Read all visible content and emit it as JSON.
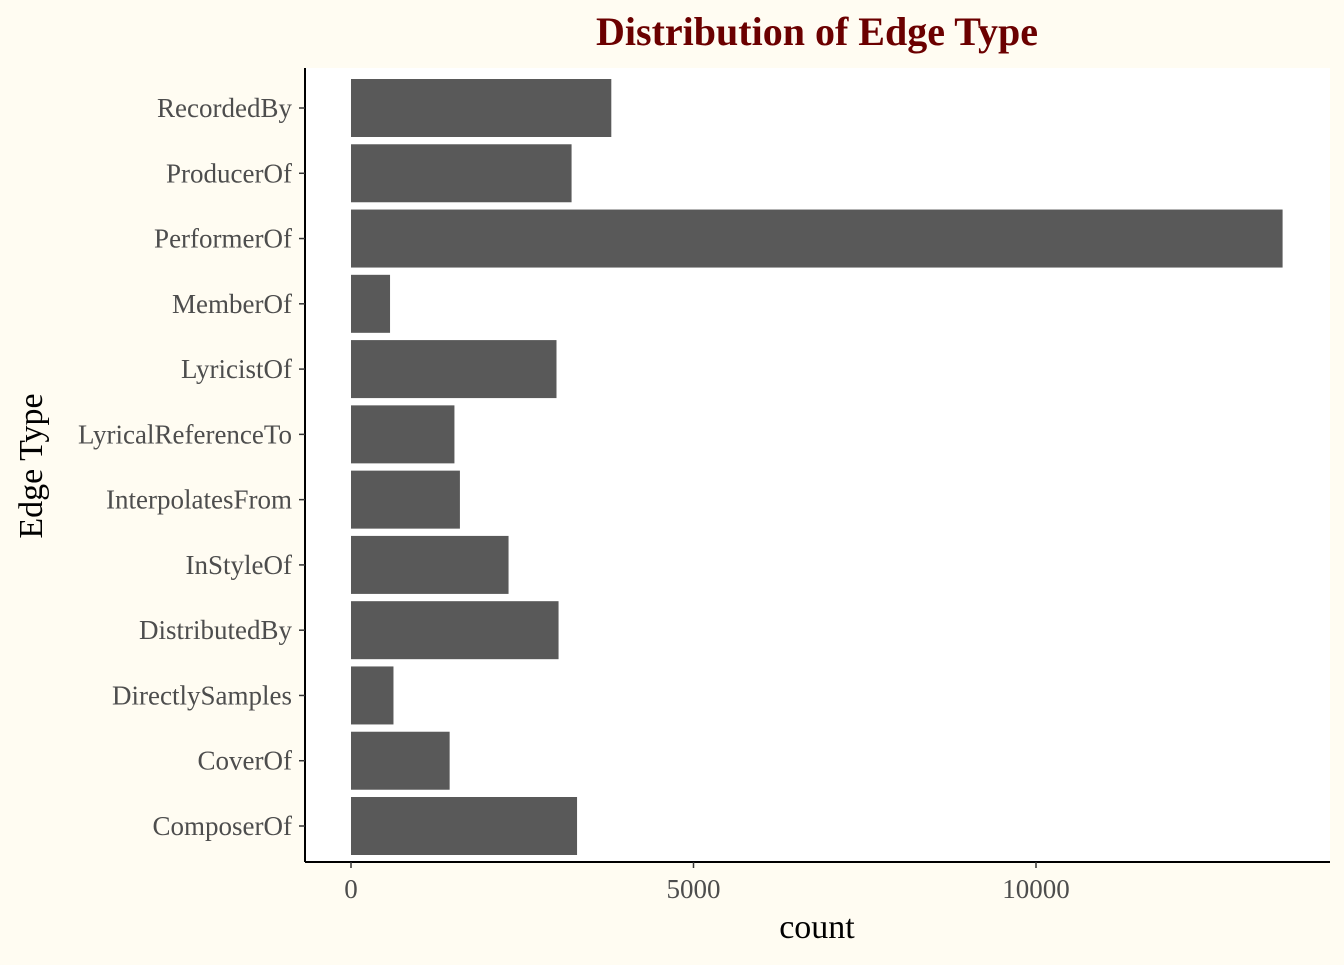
{
  "chart_data": {
    "type": "bar",
    "orientation": "horizontal",
    "title": "Distribution of Edge Type",
    "xlabel": "count",
    "ylabel": "Edge Type",
    "categories": [
      "RecordedBy",
      "ProducerOf",
      "PerformerOf",
      "MemberOf",
      "LyricistOf",
      "LyricalReferenceTo",
      "InterpolatesFrom",
      "InStyleOf",
      "DistributedBy",
      "DirectlySamples",
      "CoverOf",
      "ComposerOf"
    ],
    "values": [
      3800,
      3220,
      13600,
      570,
      3000,
      1510,
      1590,
      2300,
      3030,
      620,
      1440,
      3300
    ],
    "xlim": [
      0,
      14000
    ],
    "xticks": [
      0,
      5000,
      10000
    ],
    "xtick_labels": [
      "0",
      "5000",
      "10000"
    ],
    "grid": false,
    "legend": "none"
  },
  "colors": {
    "page_background": "#fffcf2",
    "panel_background": "#ffffff",
    "bar": "#595959",
    "title": "#6b0000",
    "axis_line": "#000000",
    "tick_text": "#4d4d4d",
    "axis_title": "#000000"
  }
}
